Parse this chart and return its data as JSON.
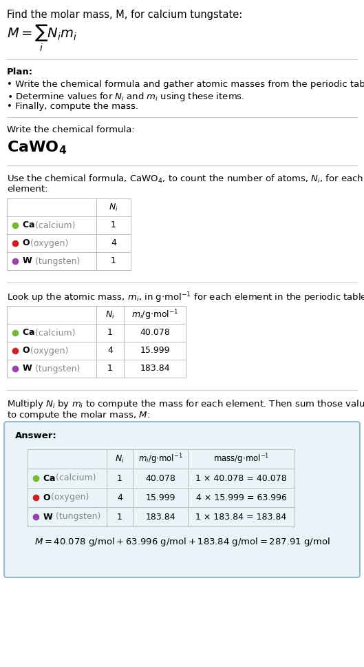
{
  "title_line1": "Find the molar mass, M, for calcium tungstate:",
  "bg_color": "#ffffff",
  "text_color": "#000000",
  "gray_text": "#888888",
  "answer_box_color": "#e8f4f8",
  "answer_box_border": "#99bbcc",
  "table_line_color": "#bbbbbb",
  "elements": [
    "Ca",
    "O",
    "W"
  ],
  "element_names": [
    "calcium",
    "oxygen",
    "tungsten"
  ],
  "element_colors": [
    "#77bb33",
    "#cc2222",
    "#9944aa"
  ],
  "Ni": [
    1,
    4,
    1
  ],
  "mi": [
    "40.078",
    "15.999",
    "183.84"
  ],
  "mass_expr": [
    "1 × 40.078 = 40.078",
    "4 × 15.999 = 63.996",
    "1 × 183.84 = 183.84"
  ],
  "sep_line_color": "#cccccc",
  "fs_title": 10.5,
  "fs_body": 9.5,
  "fs_small": 9.0,
  "fs_chem_formula": 16,
  "fs_math": 12
}
